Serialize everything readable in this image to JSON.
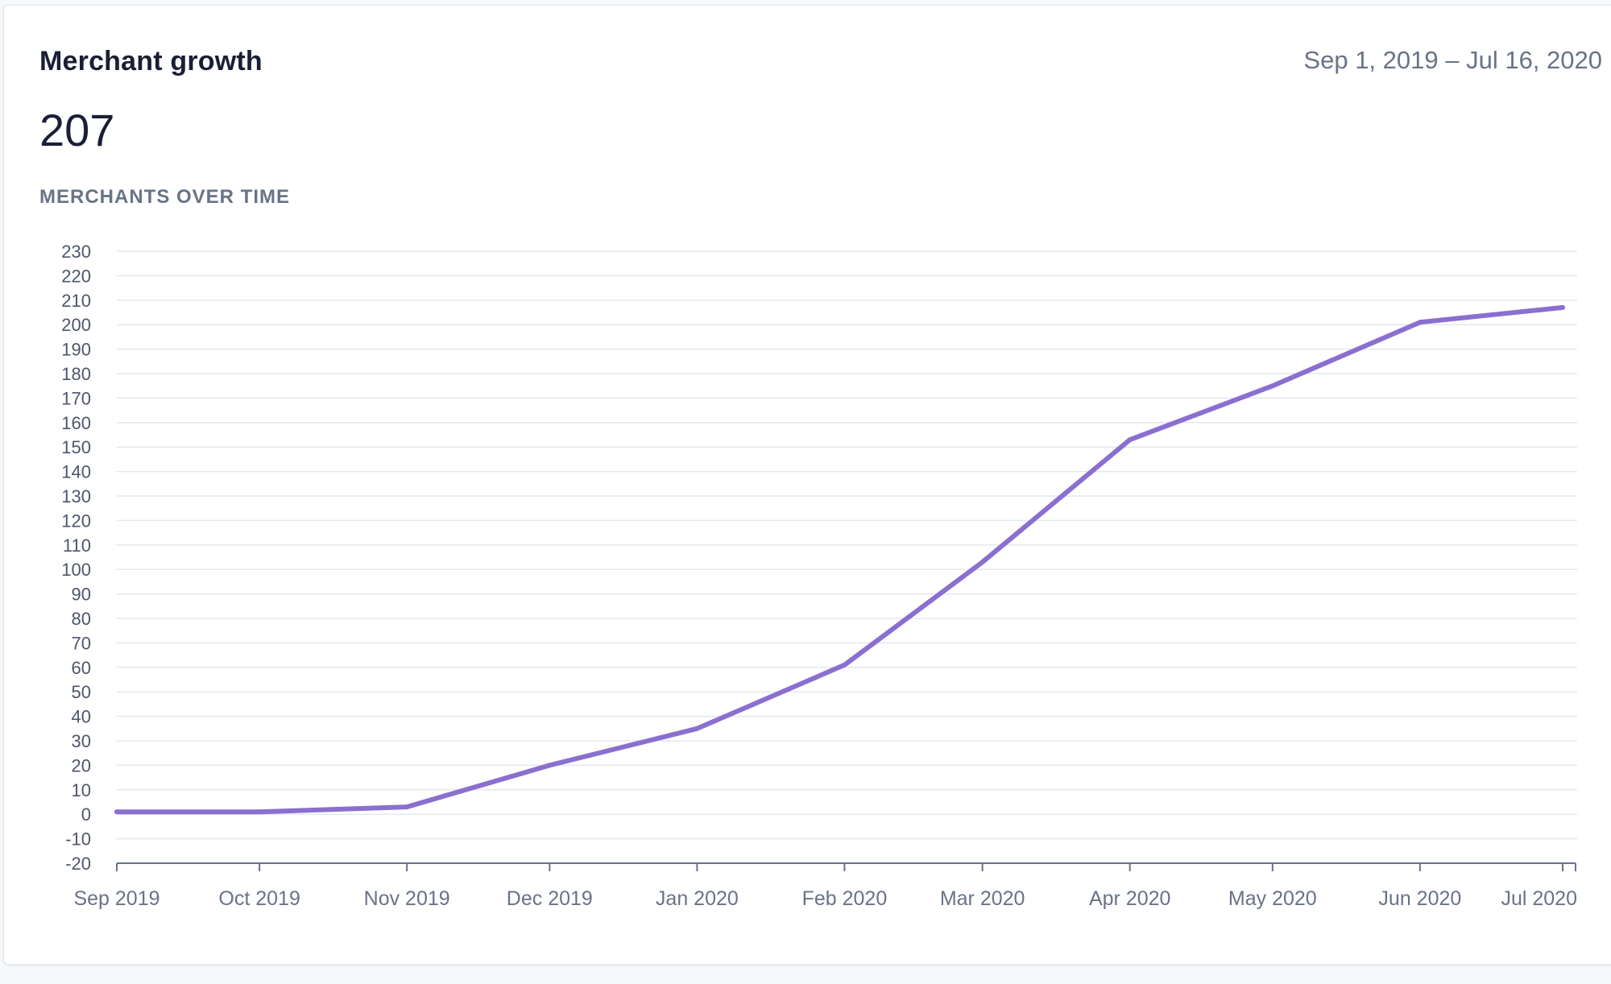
{
  "header": {
    "title": "Merchant growth",
    "date_range": "Sep 1, 2019 – Jul 16, 2020",
    "total": "207",
    "subtitle": "MERCHANTS OVER TIME"
  },
  "colors": {
    "line": "#8b6fd0",
    "grid": "#e3e8ee",
    "axis": "#697386",
    "tick_text": "#4f566b"
  },
  "chart_data": {
    "type": "line",
    "title": "",
    "xlabel": "",
    "ylabel": "",
    "grid": true,
    "legend": "none",
    "ylim": [
      -20,
      230
    ],
    "y_ticks": [
      -20,
      -10,
      0,
      10,
      20,
      30,
      40,
      50,
      60,
      70,
      80,
      90,
      100,
      110,
      120,
      130,
      140,
      150,
      160,
      170,
      180,
      190,
      200,
      210,
      220,
      230
    ],
    "xlim": [
      "2019-09-01",
      "2020-07-16"
    ],
    "x_ticks": [
      {
        "date": "2019-09-01",
        "label": "Sep 2019"
      },
      {
        "date": "2019-10-01",
        "label": "Oct 2019"
      },
      {
        "date": "2019-11-01",
        "label": "Nov 2019"
      },
      {
        "date": "2019-12-01",
        "label": "Dec 2019"
      },
      {
        "date": "2020-01-01",
        "label": "Jan 2020"
      },
      {
        "date": "2020-02-01",
        "label": "Feb 2020"
      },
      {
        "date": "2020-03-01",
        "label": "Mar 2020"
      },
      {
        "date": "2020-04-01",
        "label": "Apr 2020"
      },
      {
        "date": "2020-05-01",
        "label": "May 2020"
      },
      {
        "date": "2020-06-01",
        "label": "Jun 2020"
      },
      {
        "date": "2020-07-01",
        "label": "Jul 2020"
      }
    ],
    "series": [
      {
        "points": [
          {
            "x": "2019-09-01",
            "y": 1
          },
          {
            "x": "2019-10-01",
            "y": 1
          },
          {
            "x": "2019-11-01",
            "y": 3
          },
          {
            "x": "2019-12-01",
            "y": 20
          },
          {
            "x": "2020-01-01",
            "y": 35
          },
          {
            "x": "2020-02-01",
            "y": 61
          },
          {
            "x": "2020-03-01",
            "y": 103
          },
          {
            "x": "2020-04-01",
            "y": 153
          },
          {
            "x": "2020-05-01",
            "y": 175
          },
          {
            "x": "2020-06-01",
            "y": 201
          },
          {
            "x": "2020-07-01",
            "y": 207
          }
        ]
      }
    ]
  }
}
